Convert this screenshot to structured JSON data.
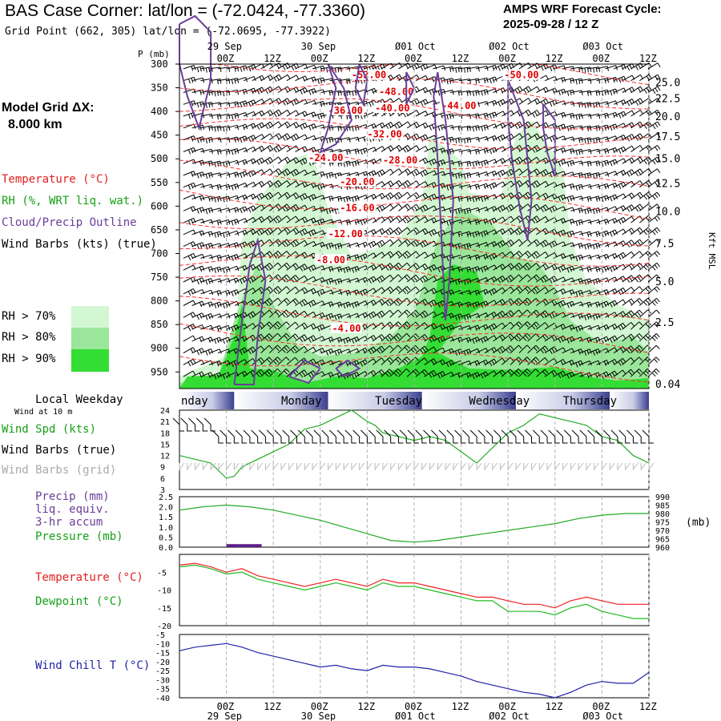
{
  "header": {
    "title": "BAS Case Corner:  lat/lon = (-72.0424, -77.3360)",
    "subtitle": "Grid Point (662, 305) lat/lon = (-72.0695, -77.3922)",
    "cycle_line1": "AMPS WRF Forecast Cycle:",
    "cycle_line2": "2025-09-28 / 12  Z"
  },
  "model_grid": {
    "line1": "Model Grid ΔX:",
    "line2": "8.000 km"
  },
  "legend": {
    "temperature": "Temperature (°C)",
    "rh": "RH (%, WRT liq. wat.)",
    "cloud": "Cloud/Precip Outline",
    "wind": "Wind Barbs (kts) (true)",
    "rh70": "RH > 70%",
    "rh80": "RH > 80%",
    "rh90": "RH > 90%"
  },
  "colors": {
    "rh70": "#d2f7d2",
    "rh80": "#9ae69a",
    "rh90": "#33dd33",
    "temp": "#ff2a2a",
    "cloud": "#6a3d9a",
    "wind_chill": "#2222aa",
    "grid": "#b0b0b0"
  },
  "time_axis": {
    "top_dates": [
      "29 Sep",
      "30 Sep",
      "Ø01 Oct",
      "Ø02 Oct",
      "Ø03 Oct"
    ],
    "top_date_hours": [
      12,
      36,
      60,
      84,
      108
    ],
    "bottom_dates": [
      "29 Sep",
      "30 Sep",
      "Ø01 Oct",
      "Ø02 Oct",
      "Ø03 Oct"
    ],
    "ticks": [
      "00Z",
      "12Z",
      "00Z",
      "12Z",
      "00Z",
      "12Z",
      "00Z",
      "12Z",
      "00Z",
      "12Z"
    ],
    "tick_hours": [
      12,
      24,
      36,
      48,
      60,
      72,
      84,
      96,
      108,
      120
    ]
  },
  "chart_data": [
    {
      "type": "heatmap",
      "name": "time-height cross section",
      "p_axis_label": "P (mb)",
      "pressure_levels": [
        300,
        350,
        400,
        450,
        500,
        550,
        600,
        650,
        700,
        750,
        800,
        850,
        900,
        950
      ],
      "height_axis_label": "Kft MSL",
      "height_ticks": [
        "25.0",
        "22.5",
        "20.0",
        "17.5",
        "15.0",
        "12.5",
        "10.0",
        "7.5",
        "5.0",
        "2.5",
        "0.04"
      ],
      "height_tick_pressures": [
        338,
        372,
        410,
        452,
        499,
        551,
        610,
        678,
        758,
        845,
        975
      ],
      "temperature_contour_labels": [
        {
          "text": "-52.00",
          "hour": 44,
          "p": 330
        },
        {
          "text": "-50.00",
          "hour": 83,
          "p": 330
        },
        {
          "text": "-48.00",
          "hour": 51,
          "p": 365
        },
        {
          "text": "-44.00",
          "hour": 67,
          "p": 395
        },
        {
          "text": "-40.00",
          "hour": 50,
          "p": 400
        },
        {
          "text": "-36.00",
          "hour": 38,
          "p": 405
        },
        {
          "text": "-32.00",
          "hour": 48,
          "p": 455
        },
        {
          "text": "-28.00",
          "hour": 52,
          "p": 510
        },
        {
          "text": "-24.00",
          "hour": 33,
          "p": 505
        },
        {
          "text": "-20.00",
          "hour": 41,
          "p": 555
        },
        {
          "text": "-16.00",
          "hour": 41,
          "p": 610
        },
        {
          "text": "-12.00",
          "hour": 38,
          "p": 665
        },
        {
          "text": "-8.00",
          "hour": 35,
          "p": 720
        },
        {
          "text": "-4.00",
          "hour": 39,
          "p": 865
        }
      ]
    },
    {
      "type": "line",
      "name": "wind speed",
      "legend": [
        "Wind Spd (kts)",
        "Wind Barbs (true)",
        "Wind Barbs (grid)"
      ],
      "ylim": [
        3,
        24
      ],
      "yticks": [
        "24",
        "21",
        "18",
        "15",
        "12",
        "9",
        "6",
        "3"
      ],
      "hours": [
        0,
        4,
        8,
        12,
        14,
        16,
        20,
        24,
        28,
        32,
        36,
        40,
        44,
        48,
        50,
        52,
        56,
        60,
        64,
        68,
        72,
        76,
        80,
        84,
        88,
        92,
        96,
        100,
        104,
        108,
        112,
        116,
        120
      ],
      "values": [
        12,
        11,
        10,
        6,
        6.5,
        9,
        11,
        13,
        15,
        19,
        20,
        22,
        24,
        21,
        20,
        18,
        17,
        16,
        17,
        16,
        13,
        10,
        14,
        18,
        20,
        23,
        22,
        21,
        20,
        17,
        16,
        12,
        10
      ]
    },
    {
      "type": "bar",
      "name": "precipitation and pressure",
      "legend": [
        "Precip (mm)",
        "liq. equiv.",
        "3-hr accum",
        "Pressure (mb)"
      ],
      "precip_ylim": [
        0,
        2.5
      ],
      "precip_yticks": [
        "2.5",
        "2.0",
        "1.5",
        "1.0",
        "0.5",
        "0.0"
      ],
      "pressure_ylim": [
        960,
        990
      ],
      "pressure_yticks": [
        "990",
        "985",
        "980",
        "975",
        "970",
        "965",
        "960"
      ],
      "pressure_unit": "(mb)",
      "precip_hours": [
        12,
        15,
        18
      ],
      "precip_values": [
        0.15,
        0.15,
        0.15
      ],
      "pressure_hours": [
        0,
        6,
        12,
        18,
        24,
        30,
        36,
        42,
        48,
        54,
        60,
        66,
        72,
        78,
        84,
        90,
        96,
        102,
        108,
        114,
        120
      ],
      "pressure_values": [
        982,
        984,
        985,
        984,
        982,
        979,
        976,
        972,
        968,
        964,
        963,
        964,
        966,
        968,
        970,
        972,
        974,
        977,
        979,
        980,
        980
      ]
    },
    {
      "type": "line",
      "name": "temperature and dewpoint",
      "legend": [
        "Temperature (°C)",
        "Dewpoint (°C)"
      ],
      "ylim": [
        -20,
        0
      ],
      "yticks": [
        "-5",
        "-10",
        "-15",
        "-20"
      ],
      "hours": [
        0,
        4,
        8,
        12,
        16,
        20,
        24,
        28,
        32,
        36,
        40,
        44,
        48,
        52,
        56,
        60,
        64,
        68,
        72,
        76,
        80,
        84,
        88,
        92,
        96,
        100,
        104,
        108,
        112,
        116,
        120
      ],
      "temperature": [
        -3,
        -2.5,
        -3.5,
        -5,
        -4,
        -6,
        -7,
        -8,
        -9,
        -8,
        -7,
        -8,
        -9,
        -7,
        -8,
        -8,
        -9,
        -10,
        -11,
        -12,
        -12,
        -13,
        -14,
        -14,
        -15,
        -13,
        -12,
        -13,
        -14,
        -14,
        -14
      ],
      "dewpoint": [
        -3.5,
        -3,
        -4,
        -5.5,
        -5,
        -7,
        -8,
        -9,
        -10,
        -9,
        -8,
        -9,
        -10,
        -8,
        -9,
        -9,
        -10,
        -11,
        -12,
        -13,
        -13,
        -16,
        -16,
        -16,
        -17,
        -15,
        -14,
        -16,
        -17,
        -18,
        -18
      ]
    },
    {
      "type": "line",
      "name": "wind chill",
      "legend": [
        "Wind Chill T (°C)"
      ],
      "ylim": [
        -40,
        -5
      ],
      "yticks": [
        "-5",
        "-10",
        "-15",
        "-20",
        "-25",
        "-30",
        "-35",
        "-40"
      ],
      "hours": [
        0,
        4,
        8,
        12,
        16,
        20,
        24,
        28,
        32,
        36,
        40,
        44,
        48,
        52,
        56,
        60,
        64,
        68,
        72,
        76,
        80,
        84,
        88,
        92,
        96,
        100,
        104,
        108,
        112,
        116,
        120
      ],
      "values": [
        -14,
        -12,
        -11,
        -10,
        -12,
        -15,
        -17,
        -19,
        -21,
        -23,
        -22,
        -24,
        -25,
        -22,
        -23,
        -23,
        -24,
        -26,
        -28,
        -31,
        -33,
        -35,
        -37,
        -38,
        -40,
        -37,
        -33,
        -31,
        -32,
        -32,
        -26
      ]
    }
  ],
  "weekday_bar": {
    "label": "Local Weekday",
    "wind_note": "Wind at 10 m",
    "days": [
      {
        "name": "nday",
        "hour": 0
      },
      {
        "name": "Monday",
        "hour": 26
      },
      {
        "name": "Tuesday",
        "hour": 50
      },
      {
        "name": "Wednesday",
        "hour": 74
      },
      {
        "name": "Thursday",
        "hour": 98
      }
    ],
    "boundaries": [
      14,
      38,
      62,
      86,
      110
    ]
  }
}
